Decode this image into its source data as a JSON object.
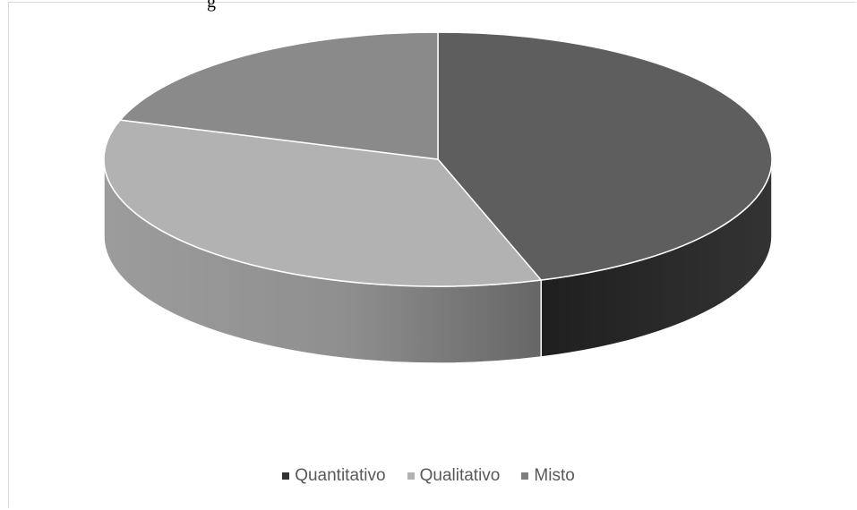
{
  "chart_data": {
    "type": "pie",
    "style": "3d",
    "title": "",
    "categories": [
      "Quantitativo",
      "Qualitativo",
      "Misto"
    ],
    "values": [
      45,
      35,
      20
    ],
    "colors": [
      "#5e5e5e",
      "#b2b2b2",
      "#8a8a8a"
    ],
    "legend_position": "bottom"
  },
  "caption_fragment": "g"
}
